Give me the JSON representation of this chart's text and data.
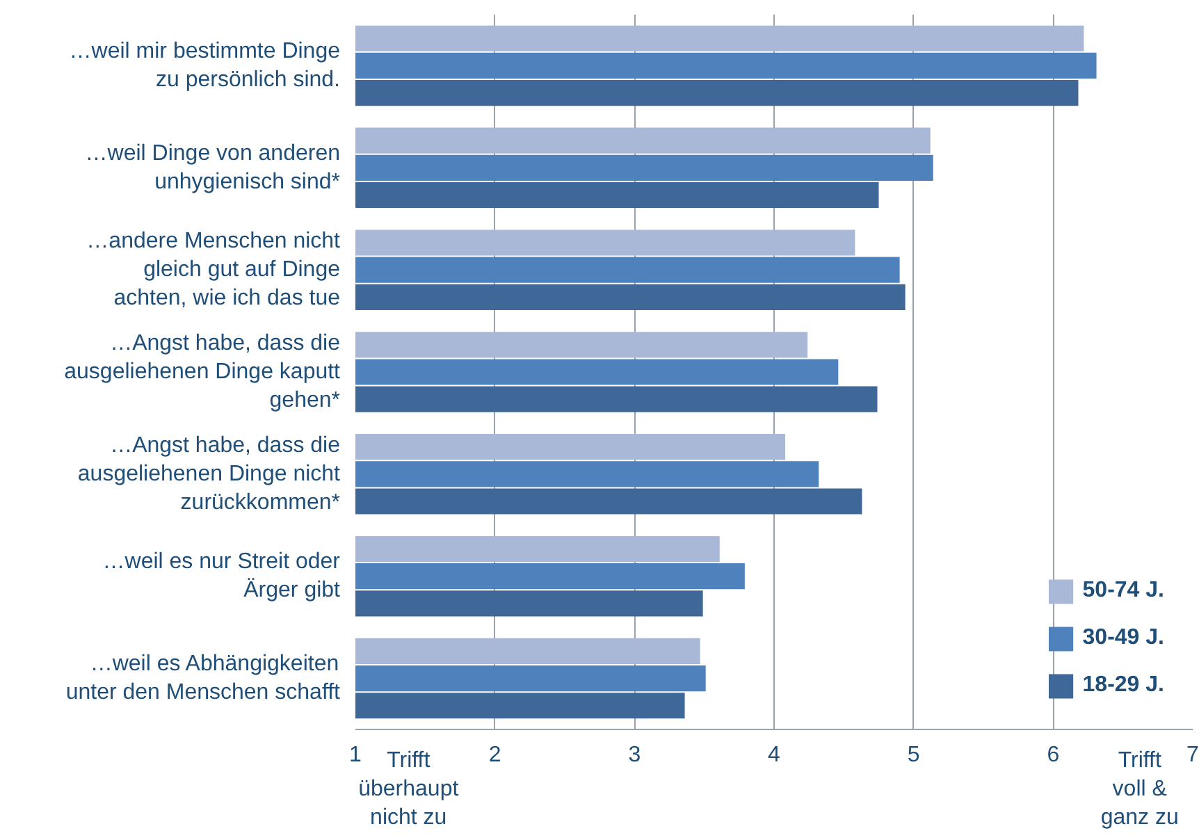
{
  "chart_data": {
    "type": "bar",
    "orientation": "horizontal",
    "categories": [
      "…weil mir bestimmte Dinge zu persönlich sind.",
      "…weil Dinge von anderen unhygienisch sind*",
      "…andere Menschen nicht gleich gut auf Dinge achten, wie ich das tue",
      "…Angst habe, dass die ausgeliehenen Dinge kaputt gehen*",
      "…Angst habe, dass die ausgeliehenen Dinge nicht zurückkommen*",
      "…weil es nur Streit oder Ärger gibt",
      "…weil es Abhängigkeiten unter den Menschen schafft"
    ],
    "series": [
      {
        "name": "50-74 J.",
        "color": "#a9b8d6",
        "values": [
          6.22,
          5.12,
          4.58,
          4.24,
          4.08,
          3.61,
          3.47
        ]
      },
      {
        "name": "30-49 J.",
        "color": "#4f81bd",
        "values": [
          6.31,
          5.14,
          4.9,
          4.46,
          4.32,
          3.79,
          3.51
        ]
      },
      {
        "name": "18-29 J.",
        "color": "#3f6797",
        "values": [
          6.18,
          4.75,
          4.94,
          4.74,
          4.63,
          3.49,
          3.36
        ]
      }
    ],
    "xlim": [
      1,
      7
    ],
    "xticks": [
      1,
      2,
      3,
      4,
      5,
      6,
      7
    ],
    "grid": "x",
    "legend": "bottom right",
    "annotations": [
      "Trifft überhaupt nicht zu",
      "Trifft voll & ganz zu"
    ]
  }
}
